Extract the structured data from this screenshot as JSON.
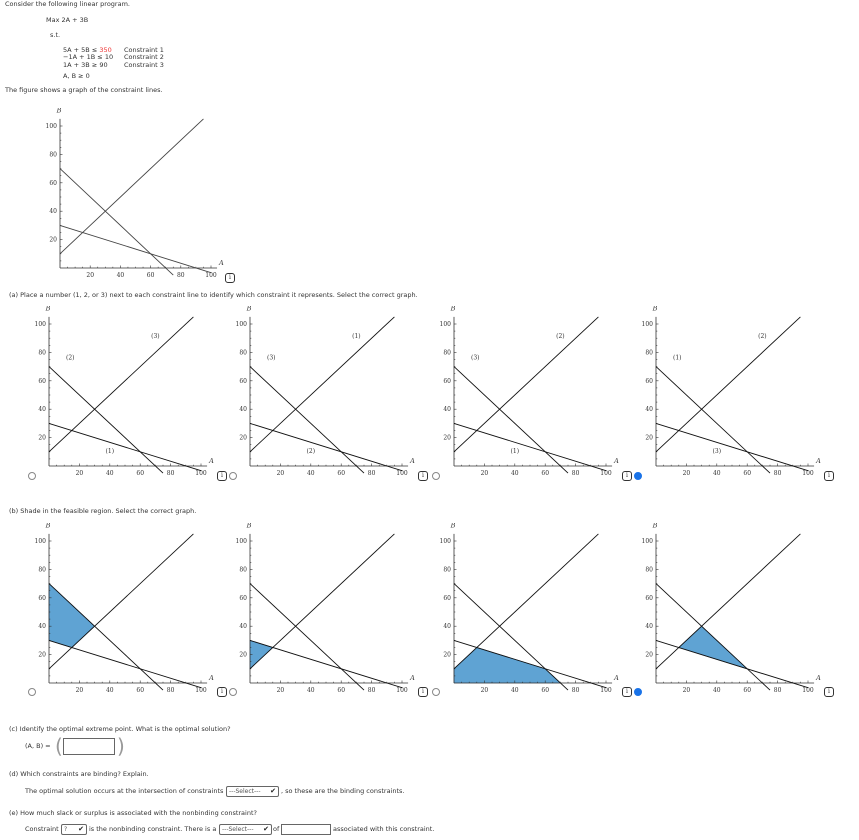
{
  "intro": "Consider the following linear program.",
  "objective": "Max  2A + 3B",
  "st": "s.t.",
  "constraints": [
    {
      "lhs": "5A + 5B",
      "op": "≤",
      "rhs": "350",
      "label": "Constraint 1"
    },
    {
      "lhs": "−1A + 1B",
      "op": "≤",
      "rhs": "10",
      "label": "Constraint 2"
    },
    {
      "lhs": "1A + 3B",
      "op": "≥",
      "rhs": "90",
      "label": "Constraint 3"
    }
  ],
  "nonneg": "A, B ≥ 0",
  "figure_text": "The figure shows a graph of the constraint lines.",
  "axes": {
    "x": "A",
    "y": "B",
    "ticks": [
      "20",
      "40",
      "60",
      "80",
      "100"
    ]
  },
  "lines": [
    {
      "name": "constraint-1",
      "from": [
        0,
        70
      ],
      "to": [
        75,
        -5
      ]
    },
    {
      "name": "constraint-2",
      "from": [
        0,
        10
      ],
      "to": [
        95,
        105
      ]
    },
    {
      "name": "constraint-3",
      "from": [
        0,
        30
      ],
      "to": [
        100,
        -3.33
      ]
    }
  ],
  "part_a": {
    "text": "(a)  Place a number (1, 2, or 3) next to each constraint line to identify which constraint it represents. Select the correct graph.",
    "options": [
      {
        "labels": {
          "bottom": "(1)",
          "left": "(2)",
          "top": "(3)"
        },
        "selected": false
      },
      {
        "labels": {
          "bottom": "(2)",
          "left": "(3)",
          "top": "(1)"
        },
        "selected": false
      },
      {
        "labels": {
          "bottom": "(1)",
          "left": "(3)",
          "top": "(2)"
        },
        "selected": false
      },
      {
        "labels": {
          "bottom": "(3)",
          "left": "(1)",
          "top": "(2)"
        },
        "selected": true
      }
    ]
  },
  "part_b": {
    "text": "(b)  Shade in the feasible region. Select the correct graph.",
    "shade_color": "#5fa3d3",
    "options": [
      {
        "region": [
          [
            0,
            30
          ],
          [
            0,
            70
          ],
          [
            30,
            40
          ],
          [
            15,
            25
          ]
        ],
        "selected": false
      },
      {
        "region": [
          [
            0,
            10
          ],
          [
            0,
            30
          ],
          [
            15,
            25
          ]
        ],
        "selected": false
      },
      {
        "region": [
          [
            0,
            0
          ],
          [
            0,
            10
          ],
          [
            15,
            25
          ],
          [
            60,
            10
          ],
          [
            70,
            0
          ]
        ],
        "selected": false
      },
      {
        "region": [
          [
            15,
            25
          ],
          [
            30,
            40
          ],
          [
            60,
            10
          ]
        ],
        "selected": true
      }
    ]
  },
  "part_c": {
    "text": "(c)  Identify the optimal extreme point. What is the optimal solution?",
    "label": "(A, B) =",
    "value": ""
  },
  "part_d": {
    "text": "(d)  Which constraints are binding? Explain.",
    "pre": "The optimal solution occurs at the intersection of constraints",
    "select": "---Select---",
    "post": ", so these are the binding constraints."
  },
  "part_e": {
    "text": "(e)  How much slack or surplus is associated with the nonbinding constraint?",
    "pre": "Constraint",
    "select1": "?",
    "mid": "is the nonbinding constraint. There is a",
    "select2": "---Select---",
    "of": "of",
    "value": "",
    "post": "associated with this constraint."
  },
  "info_icon": "i"
}
